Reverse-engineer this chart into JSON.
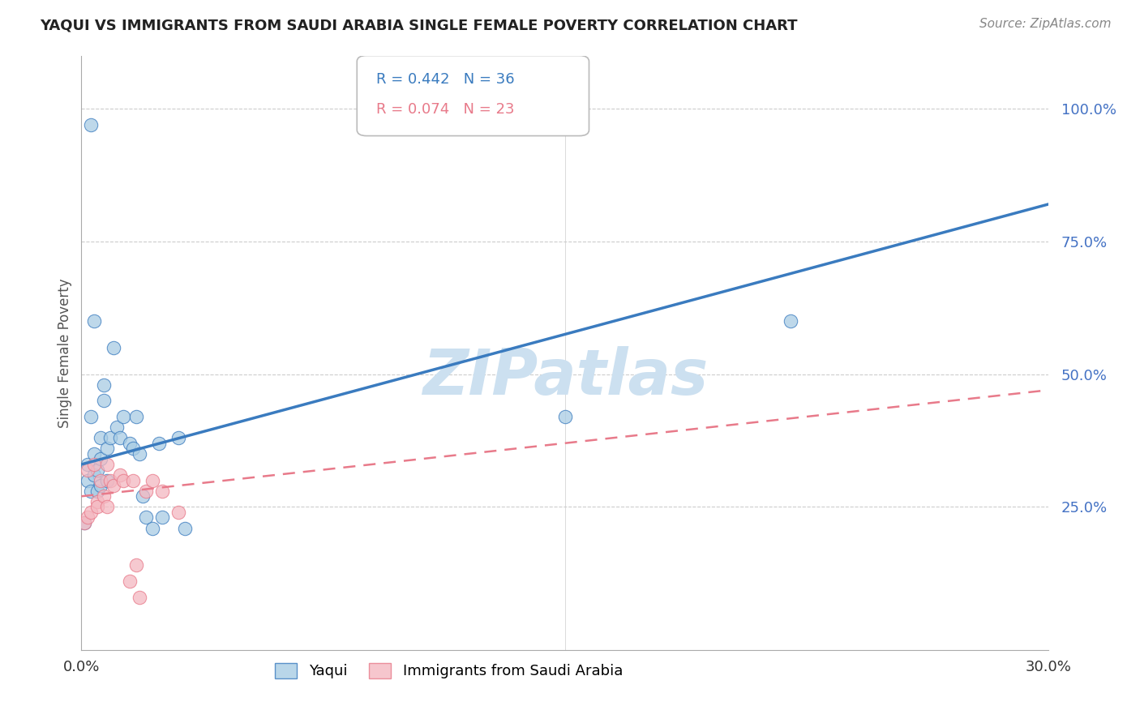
{
  "title": "YAQUI VS IMMIGRANTS FROM SAUDI ARABIA SINGLE FEMALE POVERTY CORRELATION CHART",
  "source": "Source: ZipAtlas.com",
  "ylabel": "Single Female Poverty",
  "xlim": [
    0.0,
    0.3
  ],
  "ylim": [
    -0.02,
    1.1
  ],
  "ytick_vals": [
    0.25,
    0.5,
    0.75,
    1.0
  ],
  "xtick_vals": [
    0.0,
    0.05,
    0.1,
    0.15,
    0.2,
    0.25,
    0.3
  ],
  "yaqui_R": 0.442,
  "yaqui_N": 36,
  "saudi_R": 0.074,
  "saudi_N": 23,
  "yaqui_color": "#a8cce4",
  "saudi_color": "#f4b8c1",
  "trend_blue": "#3a7bbf",
  "trend_pink": "#e87a8a",
  "watermark": "ZIPatlas",
  "watermark_color": "#cce0f0",
  "legend_yaqui": "Yaqui",
  "legend_saudi": "Immigrants from Saudi Arabia",
  "yaqui_x": [
    0.001,
    0.002,
    0.002,
    0.003,
    0.003,
    0.004,
    0.004,
    0.005,
    0.005,
    0.006,
    0.006,
    0.006,
    0.007,
    0.007,
    0.008,
    0.008,
    0.009,
    0.01,
    0.011,
    0.012,
    0.013,
    0.015,
    0.016,
    0.017,
    0.018,
    0.019,
    0.02,
    0.022,
    0.024,
    0.025,
    0.03,
    0.032,
    0.15,
    0.22,
    0.003,
    0.004
  ],
  "yaqui_y": [
    0.22,
    0.3,
    0.33,
    0.28,
    0.42,
    0.31,
    0.35,
    0.32,
    0.28,
    0.34,
    0.38,
    0.29,
    0.45,
    0.48,
    0.3,
    0.36,
    0.38,
    0.55,
    0.4,
    0.38,
    0.42,
    0.37,
    0.36,
    0.42,
    0.35,
    0.27,
    0.23,
    0.21,
    0.37,
    0.23,
    0.38,
    0.21,
    0.42,
    0.6,
    0.97,
    0.6
  ],
  "saudi_x": [
    0.001,
    0.002,
    0.002,
    0.003,
    0.004,
    0.005,
    0.005,
    0.006,
    0.007,
    0.008,
    0.009,
    0.01,
    0.012,
    0.013,
    0.015,
    0.016,
    0.017,
    0.018,
    0.02,
    0.022,
    0.025,
    0.03,
    0.008
  ],
  "saudi_y": [
    0.22,
    0.23,
    0.32,
    0.24,
    0.33,
    0.26,
    0.25,
    0.3,
    0.27,
    0.25,
    0.3,
    0.29,
    0.31,
    0.3,
    0.11,
    0.3,
    0.14,
    0.08,
    0.28,
    0.3,
    0.28,
    0.24,
    0.33
  ],
  "yaqui_trend_x": [
    0.0,
    0.3
  ],
  "yaqui_trend_y": [
    0.33,
    0.82
  ],
  "saudi_trend_x": [
    0.0,
    0.3
  ],
  "saudi_trend_y": [
    0.27,
    0.47
  ]
}
